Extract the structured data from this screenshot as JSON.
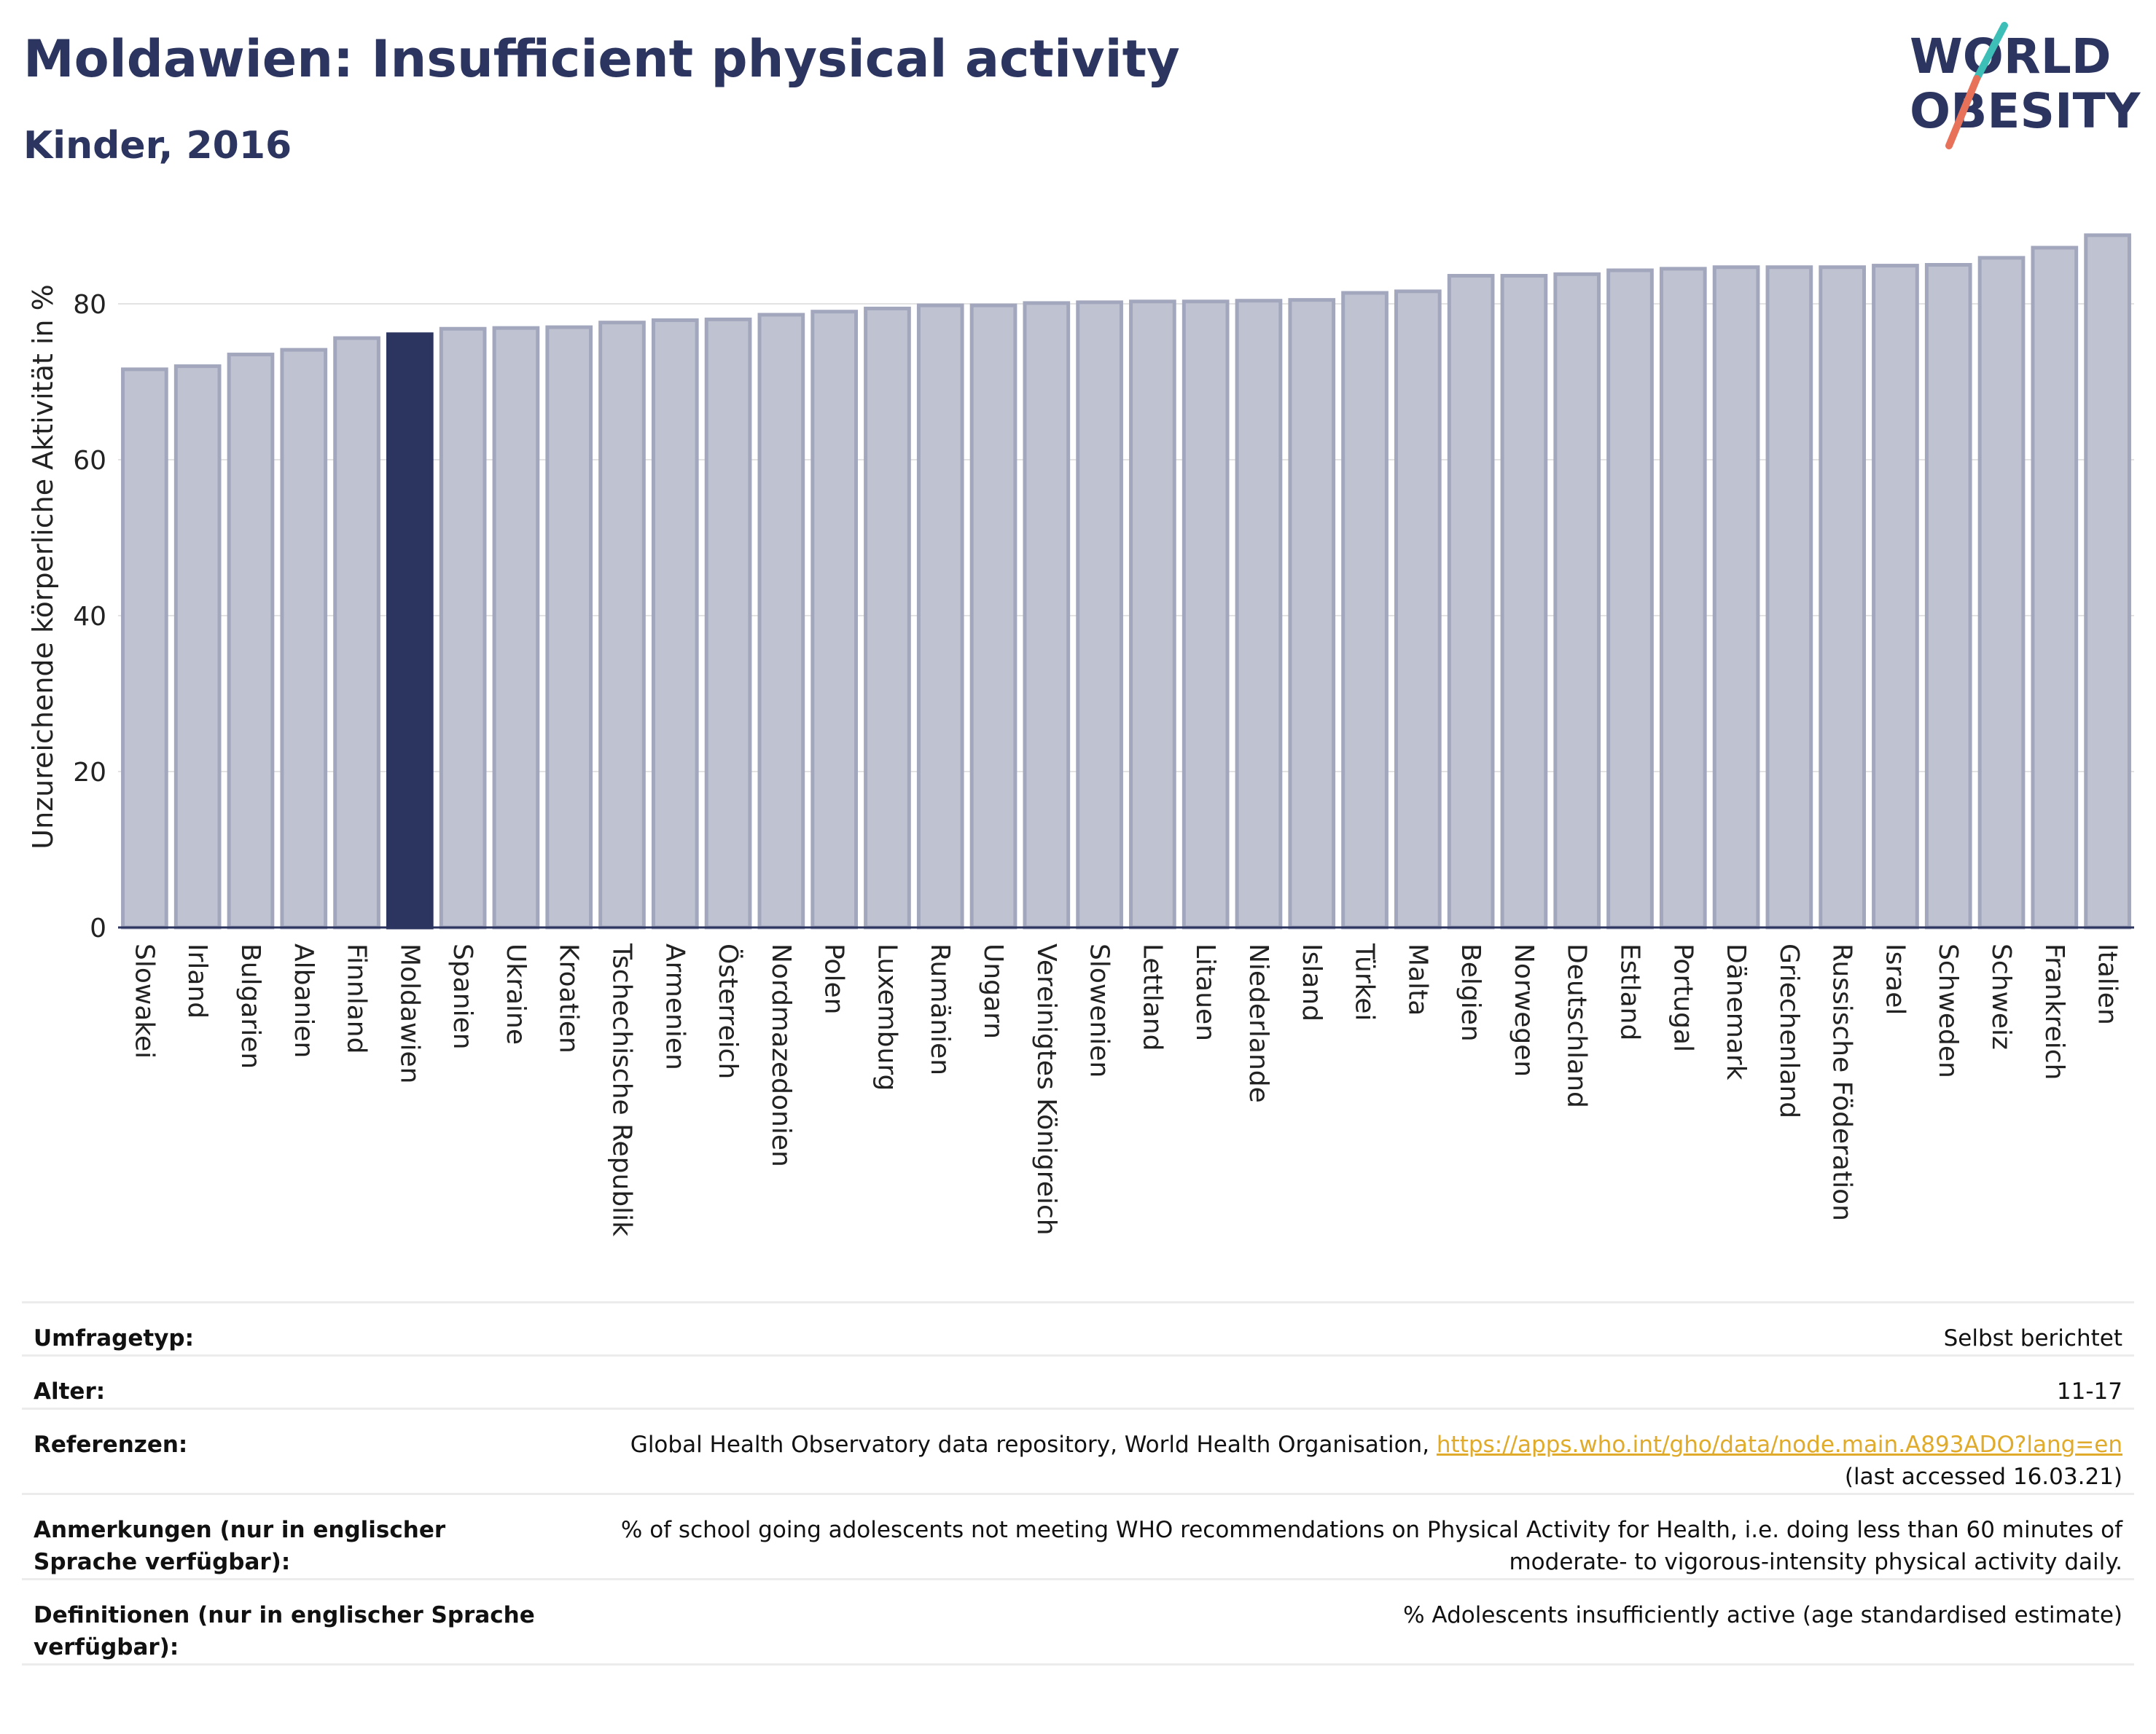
{
  "header": {
    "title": "Moldawien: Insufficient physical activity",
    "subtitle": "Kinder, 2016"
  },
  "logo": {
    "line1": "WORLD",
    "line2": "OBESITY"
  },
  "colors": {
    "bar": "#bfc2d0",
    "bar_stroke": "#a3a7bd",
    "highlight": "#2b3560",
    "text": "#2b3560",
    "grid": "#e3e3e3"
  },
  "chart_data": {
    "type": "bar",
    "ylabel": "Unzureichende körperliche Aktivität in %",
    "ylim": [
      0,
      90
    ],
    "yticks": [
      0,
      20,
      40,
      60,
      80
    ],
    "grid": true,
    "highlight": "Moldawien",
    "categories": [
      "Slowakei",
      "Irland",
      "Bulgarien",
      "Albanien",
      "Finnland",
      "Moldawien",
      "Spanien",
      "Ukraine",
      "Kroatien",
      "Tschechische Republik",
      "Armenien",
      "Österreich",
      "Nordmazedonien",
      "Polen",
      "Luxemburg",
      "Rumänien",
      "Ungarn",
      "Vereinigtes Königreich",
      "Slowenien",
      "Lettland",
      "Litauen",
      "Niederlande",
      "Island",
      "Türkei",
      "Malta",
      "Belgien",
      "Norwegen",
      "Deutschland",
      "Estland",
      "Portugal",
      "Dänemark",
      "Griechenland",
      "Russische Föderation",
      "Israel",
      "Schweden",
      "Schweiz",
      "Frankreich",
      "Italien"
    ],
    "values": [
      71.6,
      72.0,
      73.5,
      74.1,
      75.6,
      76.1,
      76.8,
      76.9,
      77.0,
      77.6,
      77.9,
      78.0,
      78.6,
      79.0,
      79.4,
      79.8,
      79.8,
      80.1,
      80.2,
      80.3,
      80.3,
      80.4,
      80.5,
      81.4,
      81.6,
      83.6,
      83.6,
      83.8,
      84.3,
      84.5,
      84.7,
      84.7,
      84.7,
      84.9,
      85.0,
      85.9,
      87.2,
      88.8
    ]
  },
  "info": {
    "rows": [
      {
        "key": "Umfragetyp:",
        "value": "Selbst berichtet"
      },
      {
        "key": "Alter:",
        "value": "11-17"
      },
      {
        "key": "Referenzen:",
        "value": "Global Health Observatory data repository, World Health Organisation, ",
        "link": "https://apps.who.int/gho/data/node.main.A893ADO?lang=en",
        "value2": "(last accessed 16.03.21)"
      },
      {
        "key": "Anmerkungen (nur in englischer Sprache verfügbar):",
        "value": "% of school going adolescents not meeting WHO recommendations on Physical Activity for Health, i.e. doing less than 60 minutes of moderate- to vigorous-intensity physical activity daily."
      },
      {
        "key": "Definitionen (nur in englischer Sprache verfügbar):",
        "value": "% Adolescents insufficiently active (age standardised estimate)"
      }
    ]
  }
}
